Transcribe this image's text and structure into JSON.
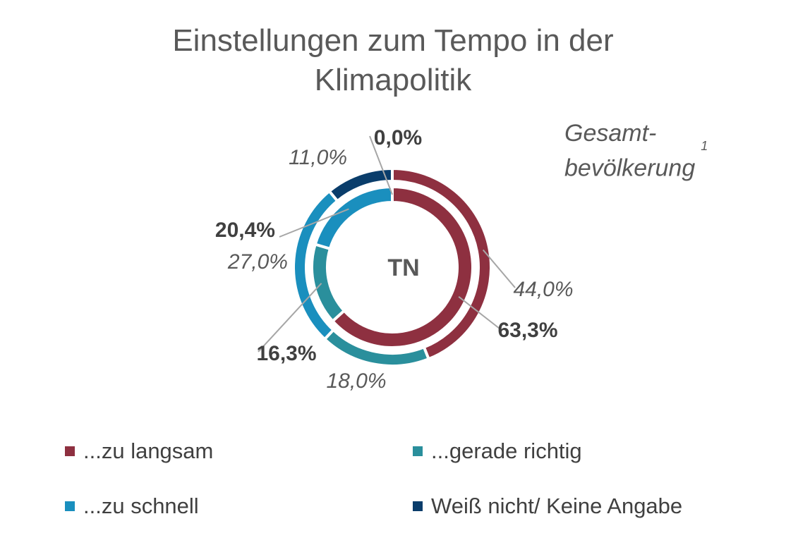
{
  "title_line1": "Einstellungen zum Tempo in der",
  "title_line2": "Klimapolitik",
  "subtitle_line1": "Gesamt-",
  "subtitle_line2": "bevölkerung",
  "subtitle_footnote": "1",
  "colors": {
    "zu_langsam": "#8e3040",
    "gerade_richtig": "#2a8f9c",
    "zu_schnell": "#1a8fbe",
    "weiss_nicht": "#0a3d6b"
  },
  "chart_data": {
    "type": "pie",
    "variant": "nested-donut",
    "center_label": "TN",
    "categories": [
      "...zu langsam",
      "...gerade richtig",
      "...zu schnell",
      "Weiß nicht/ Keine Angabe"
    ],
    "series": [
      {
        "ring": "outer",
        "name": "Gesamtbevölkerung",
        "values": [
          44.0,
          18.0,
          27.0,
          11.0
        ],
        "labels": [
          "44,0%",
          "18,0%",
          "27,0%",
          "11,0%"
        ]
      },
      {
        "ring": "inner",
        "name": "TN",
        "values": [
          63.3,
          16.3,
          20.4,
          0.0
        ],
        "labels": [
          "63,3%",
          "16,3%",
          "20,4%",
          "0,0%"
        ]
      }
    ],
    "legend_position": "bottom"
  }
}
